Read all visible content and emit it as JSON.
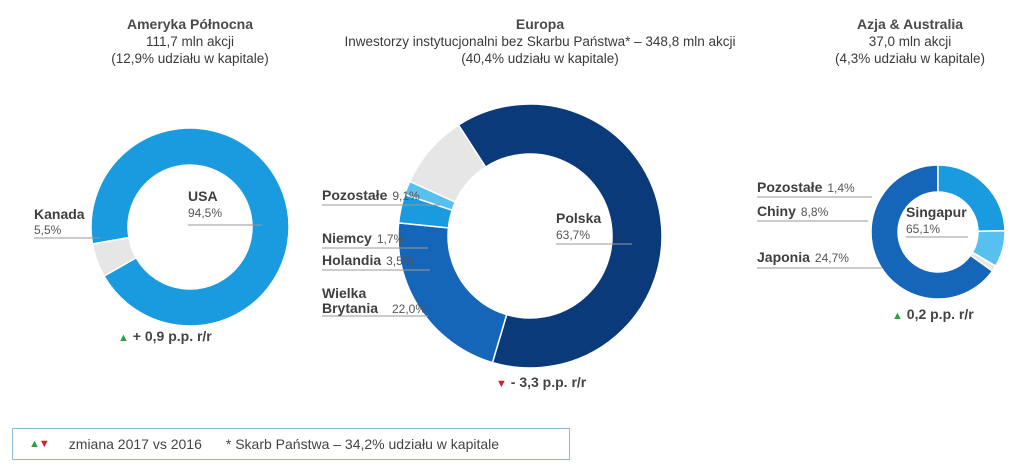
{
  "legend": {
    "arrows": "▲▼",
    "text1": "zmiana 2017 vs 2016",
    "text2": "* Skarb Państwa – 34,2% udziału w kapitale"
  },
  "chart_data": [
    {
      "type": "pie",
      "title": "Ameryka Północna",
      "subtitle": [
        "111,7 mln akcji",
        "(12,9% udziału w kapitale)"
      ],
      "slices": [
        {
          "name": "USA",
          "value": 94.5,
          "label": "94,5%",
          "color": "#1a9be0"
        },
        {
          "name": "Kanada",
          "value": 5.5,
          "label": "5,5%",
          "color": "#e6e6e6"
        }
      ],
      "change": {
        "direction": "up",
        "text": "+ 0,9 p.p. r/r"
      }
    },
    {
      "type": "pie",
      "title": "Europa",
      "subtitle": [
        "Inwestorzy instytucjonalni bez Skarbu Państwa* – 348,8 mln akcji",
        "(40,4% udziału w kapitale)"
      ],
      "slices": [
        {
          "name": "Polska",
          "value": 63.7,
          "label": "63,7%",
          "color": "#0b3a7a"
        },
        {
          "name": "Wielka Brytania",
          "value": 22.0,
          "label": "22,0%",
          "color": "#1565b8"
        },
        {
          "name": "Holandia",
          "value": 3.5,
          "label": "3,5%",
          "color": "#1a9be0"
        },
        {
          "name": "Niemcy",
          "value": 1.7,
          "label": "1,7%",
          "color": "#58c0ee"
        },
        {
          "name": "Pozostałe",
          "value": 9.1,
          "label": "9,1%",
          "color": "#e6e6e6"
        }
      ],
      "change": {
        "direction": "down",
        "text": "- 3,3 p.p. r/r"
      }
    },
    {
      "type": "pie",
      "title": "Azja & Australia",
      "subtitle": [
        "37,0 mln akcji",
        "(4,3% udziału w kapitale)"
      ],
      "slices": [
        {
          "name": "Singapur",
          "value": 65.1,
          "label": "65,1%",
          "color": "#1565b8"
        },
        {
          "name": "Japonia",
          "value": 24.7,
          "label": "24,7%",
          "color": "#1a9be0"
        },
        {
          "name": "Chiny",
          "value": 8.8,
          "label": "8,8%",
          "color": "#58c0ee"
        },
        {
          "name": "Pozostałe",
          "value": 1.4,
          "label": "1,4%",
          "color": "#e6e6e6"
        }
      ],
      "change": {
        "direction": "up",
        "text": "0,2 p.p. r/r"
      }
    }
  ]
}
